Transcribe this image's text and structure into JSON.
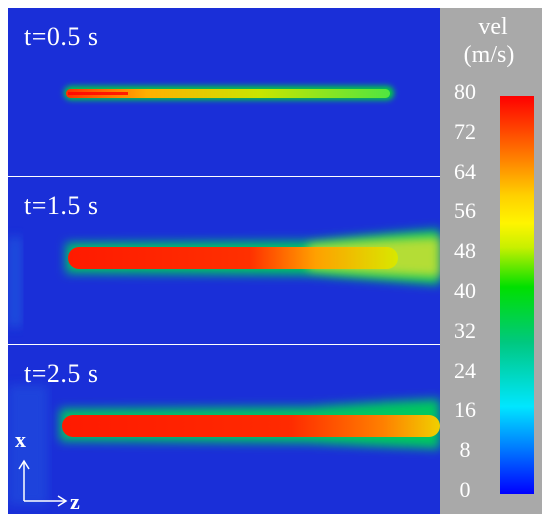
{
  "panels": [
    {
      "time_label": "t=0.5 s"
    },
    {
      "time_label": "t=1.5 s"
    },
    {
      "time_label": "t=2.5 s"
    }
  ],
  "colorbar": {
    "title_line1": "vel",
    "title_line2": "(m/s)",
    "ticks": [
      "80",
      "72",
      "64",
      "56",
      "48",
      "40",
      "32",
      "24",
      "16",
      "8",
      "0"
    ],
    "min": 0,
    "max": 80
  },
  "axes": {
    "vertical": "x",
    "horizontal": "z"
  },
  "colors": {
    "background": "#1a2fd8",
    "jet_core": "#ff2a00",
    "jet_edge": "#00e000",
    "colorbar_bg": "#a9a9a9"
  }
}
